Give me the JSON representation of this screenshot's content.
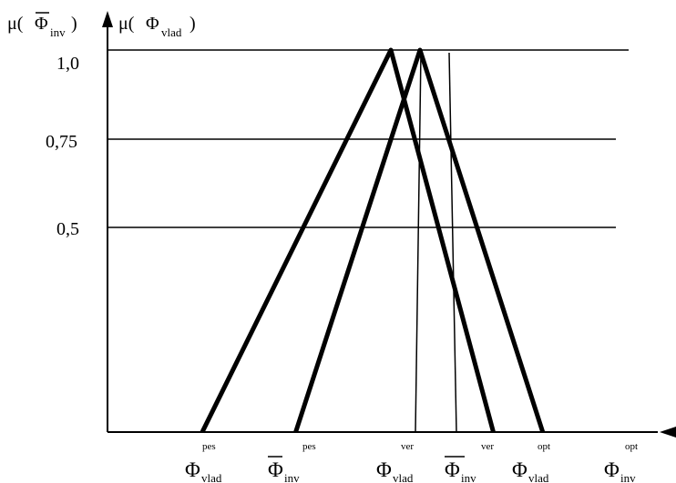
{
  "y_axis": {
    "label_left": {
      "main": "μ(",
      "symbol": "Φ",
      "subscript": "inv",
      "close": ")"
    },
    "label_right": {
      "main": "μ(",
      "symbol": "Φ",
      "subscript": "vlad",
      "close": ")"
    },
    "ticks": [
      {
        "label": "1,0",
        "value": 1.0
      },
      {
        "label": "0,75",
        "value": 0.75
      },
      {
        "label": "0,5",
        "value": 0.5
      }
    ]
  },
  "x_labels": [
    {
      "symbol": "Φ",
      "subscript": "vlad",
      "superscript": "pes",
      "overline": false
    },
    {
      "symbol": "Φ",
      "subscript": "inv",
      "superscript": "pes",
      "overline": true
    },
    {
      "symbol": "Φ",
      "subscript": "vlad",
      "superscript": "ver",
      "overline": false
    },
    {
      "symbol": "Φ",
      "subscript": "inv",
      "superscript": "ver",
      "overline": true
    },
    {
      "symbol": "Φ",
      "subscript": "vlad",
      "superscript": "opt",
      "overline": false
    },
    {
      "symbol": "Φ",
      "subscript": "inv",
      "superscript": "opt",
      "overline": true
    }
  ],
  "triangles": [
    {
      "series": "vlad",
      "pes": 0.0,
      "ver": 0.5,
      "opt": 0.75
    },
    {
      "series": "inv",
      "pes": 0.23,
      "ver": 0.5,
      "opt": 0.82
    }
  ]
}
